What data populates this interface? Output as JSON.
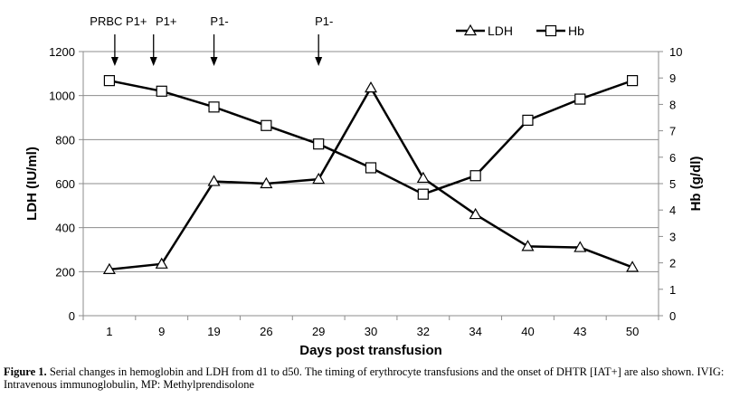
{
  "chart_data": {
    "type": "line",
    "categories": [
      "1",
      "9",
      "19",
      "26",
      "29",
      "30",
      "32",
      "34",
      "40",
      "43",
      "50"
    ],
    "xlabel": "Days post transfusion",
    "ylabel": "LDH (IU/ml)",
    "y2label": "Hb (g/dl)",
    "ylim": [
      0,
      1200
    ],
    "y2lim": [
      0,
      10
    ],
    "yticks": [
      "0",
      "200",
      "400",
      "600",
      "800",
      "1000",
      "1200"
    ],
    "y2ticks": [
      "0",
      "1",
      "2",
      "3",
      "4",
      "5",
      "6",
      "7",
      "8",
      "9",
      "10"
    ],
    "grid": "horizontal",
    "legend_position": "top-right",
    "series": [
      {
        "name": "LDH",
        "axis": "left",
        "marker": "triangle",
        "values": [
          210,
          235,
          610,
          600,
          620,
          1035,
          625,
          460,
          315,
          310,
          220
        ]
      },
      {
        "name": "Hb",
        "axis": "right",
        "marker": "square",
        "values": [
          8.9,
          8.5,
          7.9,
          7.2,
          6.5,
          5.6,
          4.6,
          5.3,
          7.4,
          8.2,
          8.9
        ]
      }
    ],
    "annotations": [
      {
        "label": "PRBC P1+",
        "category": "1"
      },
      {
        "label": "P1+",
        "category": "9"
      },
      {
        "label": "P1-",
        "category": "19"
      },
      {
        "label": "P1-",
        "category": "29"
      }
    ]
  },
  "caption": {
    "label": "Figure 1.",
    "text": " Serial changes in hemoglobin and LDH from d1 to d50. The timing of erythrocyte transfusions and the onset of DHTR [IAT+] are also shown. IVIG: Intravenous immunoglobulin, MP: Methylprendisolone"
  }
}
